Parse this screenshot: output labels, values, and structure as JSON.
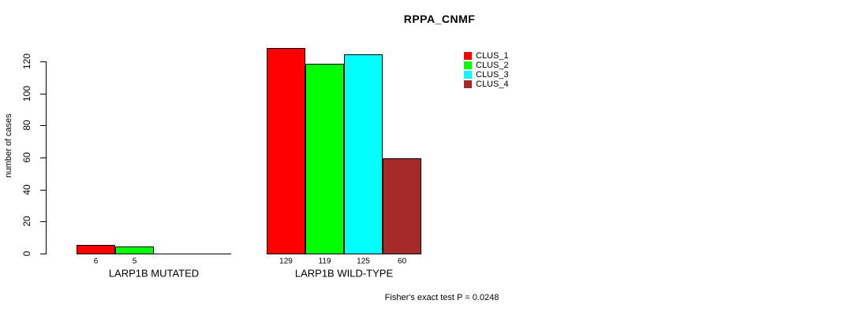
{
  "figure": {
    "background": "#FFFFFF",
    "text_color": "#000000",
    "axis_color": "#000000"
  },
  "chart_data": {
    "type": "bar",
    "title": "RPPA_CNMF",
    "ylabel": "number of cases",
    "xlabel": "",
    "ylim": [
      0,
      120
    ],
    "yticks": [
      0,
      20,
      40,
      60,
      80,
      100,
      120
    ],
    "grid": false,
    "legend_position": "top-right",
    "categories": [
      "LARP1B MUTATED",
      "LARP1B WILD-TYPE"
    ],
    "series": [
      {
        "name": "CLUS_1",
        "color": "#FF0000",
        "values": [
          6,
          129
        ]
      },
      {
        "name": "CLUS_2",
        "color": "#00FF00",
        "values": [
          5,
          119
        ]
      },
      {
        "name": "CLUS_3",
        "color": "#00FFFF",
        "values": [
          0,
          125
        ]
      },
      {
        "name": "CLUS_4",
        "color": "#A52A2A",
        "values": [
          0,
          60
        ]
      }
    ],
    "bar_value_labels": [
      [
        "6",
        "5",
        "",
        ""
      ],
      [
        "129",
        "119",
        "125",
        "60"
      ]
    ],
    "annotation": "Fisher's exact test P = 0.0248"
  }
}
